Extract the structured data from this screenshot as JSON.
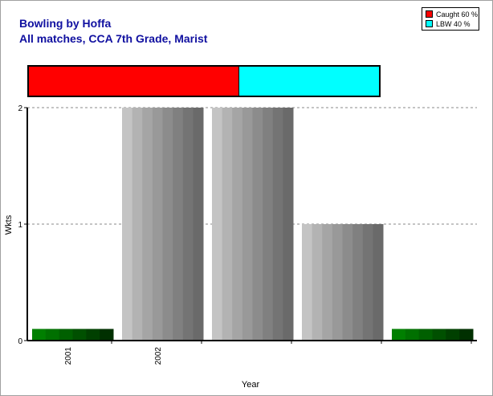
{
  "chart_data": {
    "type": "bar",
    "title": "Bowling by Hoffa",
    "subtitle": "All matches, CCA 7th Grade, Marist",
    "xlabel": "Year",
    "ylabel": "Wkts",
    "ylim": [
      0,
      2
    ],
    "yticks": [
      "0",
      "1",
      "2"
    ],
    "grid": true,
    "categories": [
      "2001",
      "2002",
      "",
      "",
      ""
    ],
    "values": [
      0.1,
      2,
      2,
      1,
      0.1
    ],
    "legend": {
      "placement": "top-right",
      "entries": [
        {
          "label": "Caught 60 %",
          "color": "#ff0000",
          "share": 0.6
        },
        {
          "label": "LBW 40 %",
          "color": "#00ffff",
          "share": 0.4
        }
      ]
    },
    "bar_colors": [
      "green",
      "gray",
      "gray",
      "gray",
      "green"
    ]
  }
}
